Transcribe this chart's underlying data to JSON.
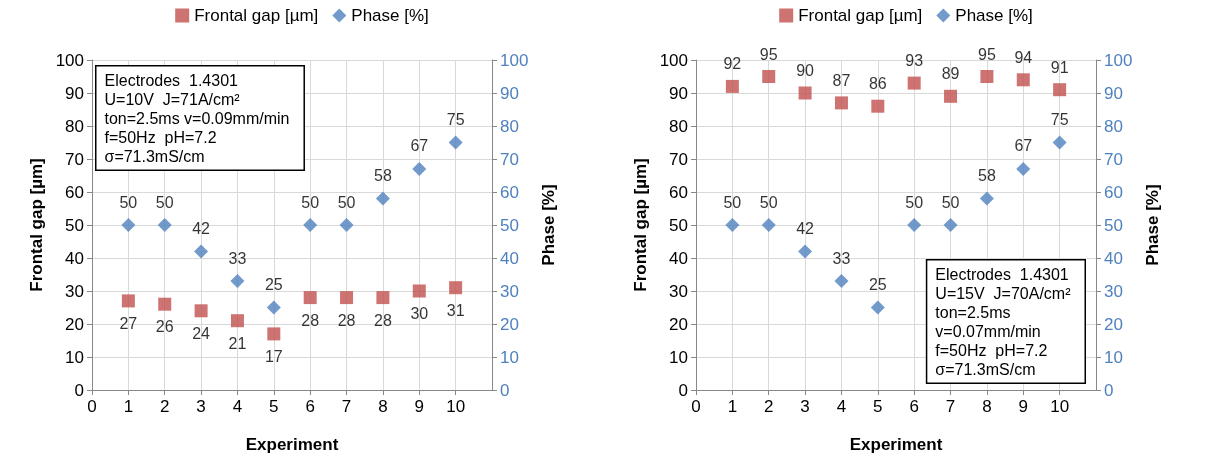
{
  "chart_data": [
    {
      "type": "scatter",
      "xlabel": "Experiment",
      "ylabel": "Frontal gap [µm]",
      "y2label": "Phase [%]",
      "x": [
        1,
        2,
        3,
        4,
        5,
        6,
        7,
        8,
        9,
        10
      ],
      "series": [
        {
          "name": "Frontal gap [µm]",
          "color": "#c0504d",
          "marker": "square",
          "values": [
            27,
            26,
            24,
            21,
            17,
            28,
            28,
            28,
            30,
            31
          ]
        },
        {
          "name": "Phase [%]",
          "color": "#4f81bd",
          "marker": "diamond",
          "axis": "y2",
          "values": [
            50,
            50,
            42,
            33,
            25,
            50,
            50,
            58,
            67,
            75
          ]
        }
      ],
      "xlim": [
        0,
        11
      ],
      "xticks": [
        0,
        1,
        2,
        3,
        4,
        5,
        6,
        7,
        8,
        9,
        10
      ],
      "ylim": [
        0,
        100
      ],
      "yticks": [
        0,
        10,
        20,
        30,
        40,
        50,
        60,
        70,
        80,
        90,
        100
      ],
      "y2lim": [
        0,
        100
      ],
      "y2ticks": [
        0,
        10,
        20,
        30,
        40,
        50,
        60,
        70,
        80,
        90,
        100
      ],
      "grid": true,
      "legend": "top",
      "data_labels": true,
      "annotations": [
        "Electrodes  1.4301\nU=10V  J=71A/cm²\nton=2.5ms v=0.09mm/min\nf=50Hz  pH=7.2\nσ=71.3mS/cm"
      ]
    },
    {
      "type": "scatter",
      "xlabel": "Experiment",
      "ylabel": "Frontal gap [µm]",
      "y2label": "Phase [%]",
      "x": [
        1,
        2,
        3,
        4,
        5,
        6,
        7,
        8,
        9,
        10
      ],
      "series": [
        {
          "name": "Frontal gap [µm]",
          "color": "#c0504d",
          "marker": "square",
          "values": [
            92,
            95,
            90,
            87,
            86,
            93,
            89,
            95,
            94,
            91
          ]
        },
        {
          "name": "Phase [%]",
          "color": "#4f81bd",
          "marker": "diamond",
          "axis": "y2",
          "values": [
            50,
            50,
            42,
            33,
            25,
            50,
            50,
            58,
            67,
            75
          ]
        }
      ],
      "xlim": [
        0,
        11
      ],
      "xticks": [
        0,
        1,
        2,
        3,
        4,
        5,
        6,
        7,
        8,
        9,
        10
      ],
      "ylim": [
        0,
        100
      ],
      "yticks": [
        0,
        10,
        20,
        30,
        40,
        50,
        60,
        70,
        80,
        90,
        100
      ],
      "y2lim": [
        0,
        100
      ],
      "y2ticks": [
        0,
        10,
        20,
        30,
        40,
        50,
        60,
        70,
        80,
        90,
        100
      ],
      "grid": true,
      "legend": "top",
      "data_labels": true,
      "annotations": [
        "Electrodes  1.4301\nU=15V  J=70A/cm²\nton=2.5ms\nv=0.07mm/min\nf=50Hz  pH=7.2\nσ=71.3mS/cm"
      ]
    }
  ]
}
